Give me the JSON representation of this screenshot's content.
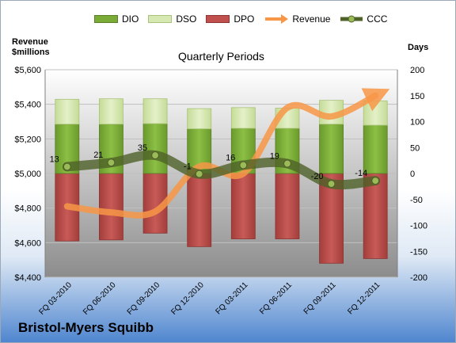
{
  "chart_data": {
    "type": "bar",
    "title": "Quarterly Periods",
    "company": "Bristol-Myers Squibb",
    "ylabel_left": "Revenue\n$millions",
    "ylabel_right": "Days",
    "categories": [
      "FQ 03-2010",
      "FQ 06-2010",
      "FQ 09-2010",
      "FQ 12-2010",
      "FQ 03-2011",
      "FQ 06-2011",
      "FQ 09-2011",
      "FQ 12-2011"
    ],
    "y_left": {
      "range": [
        4400,
        5600
      ],
      "ticks": [
        "$4,400",
        "$4,600",
        "$4,800",
        "$5,000",
        "$5,200",
        "$5,400",
        "$5,600"
      ],
      "tick_values": [
        4400,
        4600,
        4800,
        5000,
        5200,
        5400,
        5600
      ]
    },
    "y_right": {
      "range": [
        -200,
        200
      ],
      "ticks": [
        "-200",
        "-150",
        "-100",
        "-50",
        "0",
        "50",
        "100",
        "150",
        "200"
      ],
      "tick_values": [
        -200,
        -150,
        -100,
        -50,
        0,
        50,
        100,
        150,
        200
      ]
    },
    "series": [
      {
        "name": "DIO",
        "axis": "right",
        "color": "#7aab37",
        "values": [
          95,
          95,
          96,
          86,
          87,
          87,
          95,
          93
        ]
      },
      {
        "name": "DSO",
        "axis": "right",
        "color": "#d7e8b3",
        "values": [
          48,
          49,
          48,
          39,
          40,
          39,
          46,
          47
        ]
      },
      {
        "name": "DPO",
        "axis": "right",
        "color": "#c0504d",
        "values": [
          -130,
          -128,
          -115,
          -141,
          -126,
          -126,
          -173,
          -164
        ]
      },
      {
        "name": "Revenue",
        "axis": "left",
        "color": "#f79646",
        "values": [
          4810,
          4775,
          4780,
          5040,
          5000,
          5380,
          5330,
          5450
        ]
      },
      {
        "name": "CCC",
        "axis": "right",
        "color": "#4f6228",
        "values": [
          13,
          21,
          35,
          -1,
          16,
          19,
          -20,
          -14
        ],
        "labels": [
          "13",
          "21",
          "35",
          "-1",
          "16",
          "19",
          "-20",
          "-14"
        ]
      }
    ],
    "grid": true,
    "legend_position": "top"
  }
}
